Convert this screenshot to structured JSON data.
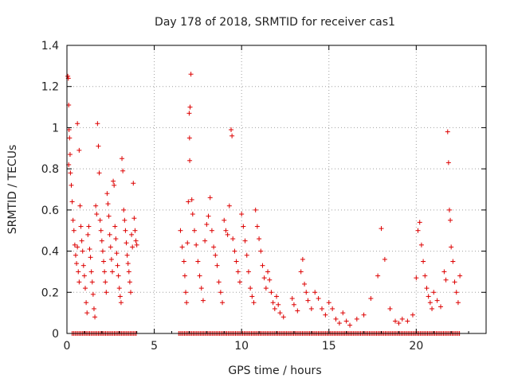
{
  "chart_data": {
    "type": "scatter",
    "title": "Day 178 of 2018, SRMTID for receiver cas1",
    "xlabel": "GPS time / hours",
    "ylabel": "SRMTID / TECUs",
    "xlim": [
      0,
      24
    ],
    "ylim": [
      0,
      1.4
    ],
    "x_ticks": [
      {
        "value": 0,
        "label": "0"
      },
      {
        "value": 5,
        "label": "5"
      },
      {
        "value": 10,
        "label": "10"
      },
      {
        "value": 15,
        "label": "15"
      },
      {
        "value": 20,
        "label": "20"
      }
    ],
    "y_ticks": [
      {
        "value": 0,
        "label": "0"
      },
      {
        "value": 0.2,
        "label": "0.2"
      },
      {
        "value": 0.4,
        "label": "0.4"
      },
      {
        "value": 0.6,
        "label": "0.6"
      },
      {
        "value": 0.8,
        "label": "0.8"
      },
      {
        "value": 1.0,
        "label": "1"
      },
      {
        "value": 1.2,
        "label": "1.2"
      },
      {
        "value": 1.4,
        "label": "1.4"
      }
    ],
    "grid": true,
    "marker": "+",
    "color": "#dd0000",
    "series": [
      {
        "name": "SRMTID",
        "points": [
          [
            0.05,
            1.25
          ],
          [
            0.08,
            1.24
          ],
          [
            0.1,
            1.11
          ],
          [
            0.12,
            0.99
          ],
          [
            0.15,
            0.95
          ],
          [
            0.18,
            0.87
          ],
          [
            0.1,
            0.82
          ],
          [
            0.2,
            0.78
          ],
          [
            0.25,
            0.72
          ],
          [
            0.3,
            0.64
          ],
          [
            0.35,
            0.55
          ],
          [
            0.4,
            0.5
          ],
          [
            0.45,
            0.43
          ],
          [
            0.5,
            0.38
          ],
          [
            0.55,
            0.34
          ],
          [
            0.6,
            0.42
          ],
          [
            0.65,
            0.3
          ],
          [
            0.7,
            0.25
          ],
          [
            0.75,
            0.62
          ],
          [
            0.8,
            0.52
          ],
          [
            0.85,
            0.45
          ],
          [
            0.6,
            1.02
          ],
          [
            0.7,
            0.89
          ],
          [
            0.9,
            0.4
          ],
          [
            0.95,
            0.33
          ],
          [
            1.0,
            0.28
          ],
          [
            1.05,
            0.22
          ],
          [
            1.1,
            0.15
          ],
          [
            1.15,
            0.1
          ],
          [
            1.2,
            0.48
          ],
          [
            1.25,
            0.52
          ],
          [
            1.3,
            0.41
          ],
          [
            1.35,
            0.37
          ],
          [
            1.4,
            0.3
          ],
          [
            1.45,
            0.25
          ],
          [
            1.5,
            0.19
          ],
          [
            1.55,
            0.12
          ],
          [
            1.6,
            0.08
          ],
          [
            1.65,
            0.62
          ],
          [
            1.7,
            0.58
          ],
          [
            1.75,
            1.02
          ],
          [
            1.8,
            0.91
          ],
          [
            1.85,
            0.78
          ],
          [
            1.9,
            0.55
          ],
          [
            1.95,
            0.5
          ],
          [
            2.0,
            0.45
          ],
          [
            2.05,
            0.4
          ],
          [
            2.1,
            0.35
          ],
          [
            2.15,
            0.3
          ],
          [
            2.2,
            0.25
          ],
          [
            2.25,
            0.2
          ],
          [
            2.3,
            0.68
          ],
          [
            2.35,
            0.63
          ],
          [
            2.4,
            0.57
          ],
          [
            2.45,
            0.48
          ],
          [
            2.5,
            0.42
          ],
          [
            2.55,
            0.36
          ],
          [
            2.6,
            0.3
          ],
          [
            2.65,
            0.74
          ],
          [
            2.7,
            0.72
          ],
          [
            2.75,
            0.52
          ],
          [
            2.8,
            0.46
          ],
          [
            2.85,
            0.39
          ],
          [
            2.9,
            0.33
          ],
          [
            2.95,
            0.28
          ],
          [
            3.0,
            0.22
          ],
          [
            3.05,
            0.18
          ],
          [
            3.1,
            0.15
          ],
          [
            3.15,
            0.85
          ],
          [
            3.2,
            0.79
          ],
          [
            3.25,
            0.6
          ],
          [
            3.3,
            0.55
          ],
          [
            3.35,
            0.5
          ],
          [
            3.4,
            0.44
          ],
          [
            3.45,
            0.38
          ],
          [
            3.5,
            0.34
          ],
          [
            3.55,
            0.3
          ],
          [
            3.6,
            0.25
          ],
          [
            3.65,
            0.2
          ],
          [
            3.7,
            0.48
          ],
          [
            3.75,
            0.42
          ],
          [
            3.8,
            0.73
          ],
          [
            3.85,
            0.56
          ],
          [
            3.9,
            0.5
          ],
          [
            3.95,
            0.45
          ],
          [
            4.0,
            0.43
          ],
          [
            6.5,
            0.5
          ],
          [
            6.6,
            0.42
          ],
          [
            6.7,
            0.35
          ],
          [
            6.75,
            0.28
          ],
          [
            6.8,
            0.2
          ],
          [
            6.85,
            0.15
          ],
          [
            6.9,
            0.44
          ],
          [
            6.95,
            0.64
          ],
          [
            7.0,
            1.07
          ],
          [
            7.05,
            1.1
          ],
          [
            7.1,
            1.26
          ],
          [
            7.02,
            0.95
          ],
          [
            7.03,
            0.84
          ],
          [
            7.15,
            0.65
          ],
          [
            7.2,
            0.58
          ],
          [
            7.3,
            0.5
          ],
          [
            7.4,
            0.43
          ],
          [
            7.5,
            0.35
          ],
          [
            7.6,
            0.28
          ],
          [
            7.7,
            0.22
          ],
          [
            7.8,
            0.16
          ],
          [
            7.9,
            0.45
          ],
          [
            8.0,
            0.53
          ],
          [
            8.1,
            0.57
          ],
          [
            8.2,
            0.66
          ],
          [
            8.3,
            0.5
          ],
          [
            8.4,
            0.42
          ],
          [
            8.5,
            0.38
          ],
          [
            8.6,
            0.33
          ],
          [
            8.7,
            0.25
          ],
          [
            8.8,
            0.2
          ],
          [
            8.9,
            0.15
          ],
          [
            9.0,
            0.55
          ],
          [
            9.1,
            0.5
          ],
          [
            9.2,
            0.48
          ],
          [
            9.3,
            0.62
          ],
          [
            9.4,
            0.99
          ],
          [
            9.45,
            0.96
          ],
          [
            9.5,
            0.46
          ],
          [
            9.6,
            0.4
          ],
          [
            9.7,
            0.35
          ],
          [
            9.8,
            0.3
          ],
          [
            9.9,
            0.25
          ],
          [
            10.0,
            0.58
          ],
          [
            10.1,
            0.52
          ],
          [
            10.2,
            0.45
          ],
          [
            10.3,
            0.38
          ],
          [
            10.4,
            0.3
          ],
          [
            10.5,
            0.22
          ],
          [
            10.6,
            0.18
          ],
          [
            10.7,
            0.15
          ],
          [
            10.8,
            0.6
          ],
          [
            10.9,
            0.52
          ],
          [
            11.0,
            0.46
          ],
          [
            11.1,
            0.4
          ],
          [
            11.2,
            0.33
          ],
          [
            11.3,
            0.27
          ],
          [
            11.4,
            0.22
          ],
          [
            11.5,
            0.3
          ],
          [
            11.6,
            0.26
          ],
          [
            11.7,
            0.2
          ],
          [
            11.8,
            0.15
          ],
          [
            11.9,
            0.12
          ],
          [
            12.0,
            0.18
          ],
          [
            12.1,
            0.14
          ],
          [
            12.2,
            0.1
          ],
          [
            12.4,
            0.08
          ],
          [
            12.9,
            0.17
          ],
          [
            13.0,
            0.14
          ],
          [
            13.2,
            0.11
          ],
          [
            13.4,
            0.3
          ],
          [
            13.5,
            0.36
          ],
          [
            13.6,
            0.24
          ],
          [
            13.7,
            0.2
          ],
          [
            13.8,
            0.16
          ],
          [
            14.0,
            0.12
          ],
          [
            14.2,
            0.2
          ],
          [
            14.4,
            0.17
          ],
          [
            14.6,
            0.12
          ],
          [
            14.8,
            0.09
          ],
          [
            15.0,
            0.15
          ],
          [
            15.2,
            0.12
          ],
          [
            15.4,
            0.07
          ],
          [
            15.6,
            0.05
          ],
          [
            15.8,
            0.1
          ],
          [
            16.0,
            0.06
          ],
          [
            16.2,
            0.04
          ],
          [
            16.6,
            0.07
          ],
          [
            17.0,
            0.09
          ],
          [
            17.4,
            0.17
          ],
          [
            17.8,
            0.28
          ],
          [
            18.0,
            0.51
          ],
          [
            18.2,
            0.36
          ],
          [
            18.5,
            0.12
          ],
          [
            18.8,
            0.06
          ],
          [
            19.0,
            0.05
          ],
          [
            19.2,
            0.07
          ],
          [
            19.5,
            0.06
          ],
          [
            19.8,
            0.09
          ],
          [
            20.0,
            0.27
          ],
          [
            20.1,
            0.5
          ],
          [
            20.2,
            0.54
          ],
          [
            20.3,
            0.43
          ],
          [
            20.4,
            0.35
          ],
          [
            20.5,
            0.28
          ],
          [
            20.6,
            0.22
          ],
          [
            20.7,
            0.18
          ],
          [
            20.8,
            0.15
          ],
          [
            20.9,
            0.12
          ],
          [
            21.0,
            0.2
          ],
          [
            21.2,
            0.16
          ],
          [
            21.4,
            0.13
          ],
          [
            21.6,
            0.3
          ],
          [
            21.7,
            0.26
          ],
          [
            21.8,
            0.98
          ],
          [
            21.85,
            0.83
          ],
          [
            21.9,
            0.6
          ],
          [
            21.95,
            0.55
          ],
          [
            22.0,
            0.42
          ],
          [
            22.1,
            0.35
          ],
          [
            22.2,
            0.25
          ],
          [
            22.3,
            0.2
          ],
          [
            22.4,
            0.15
          ],
          [
            22.5,
            0.28
          ]
        ],
        "zero_runs": [
          [
            0.3,
            4.0
          ],
          [
            6.4,
            22.5
          ]
        ]
      }
    ]
  }
}
